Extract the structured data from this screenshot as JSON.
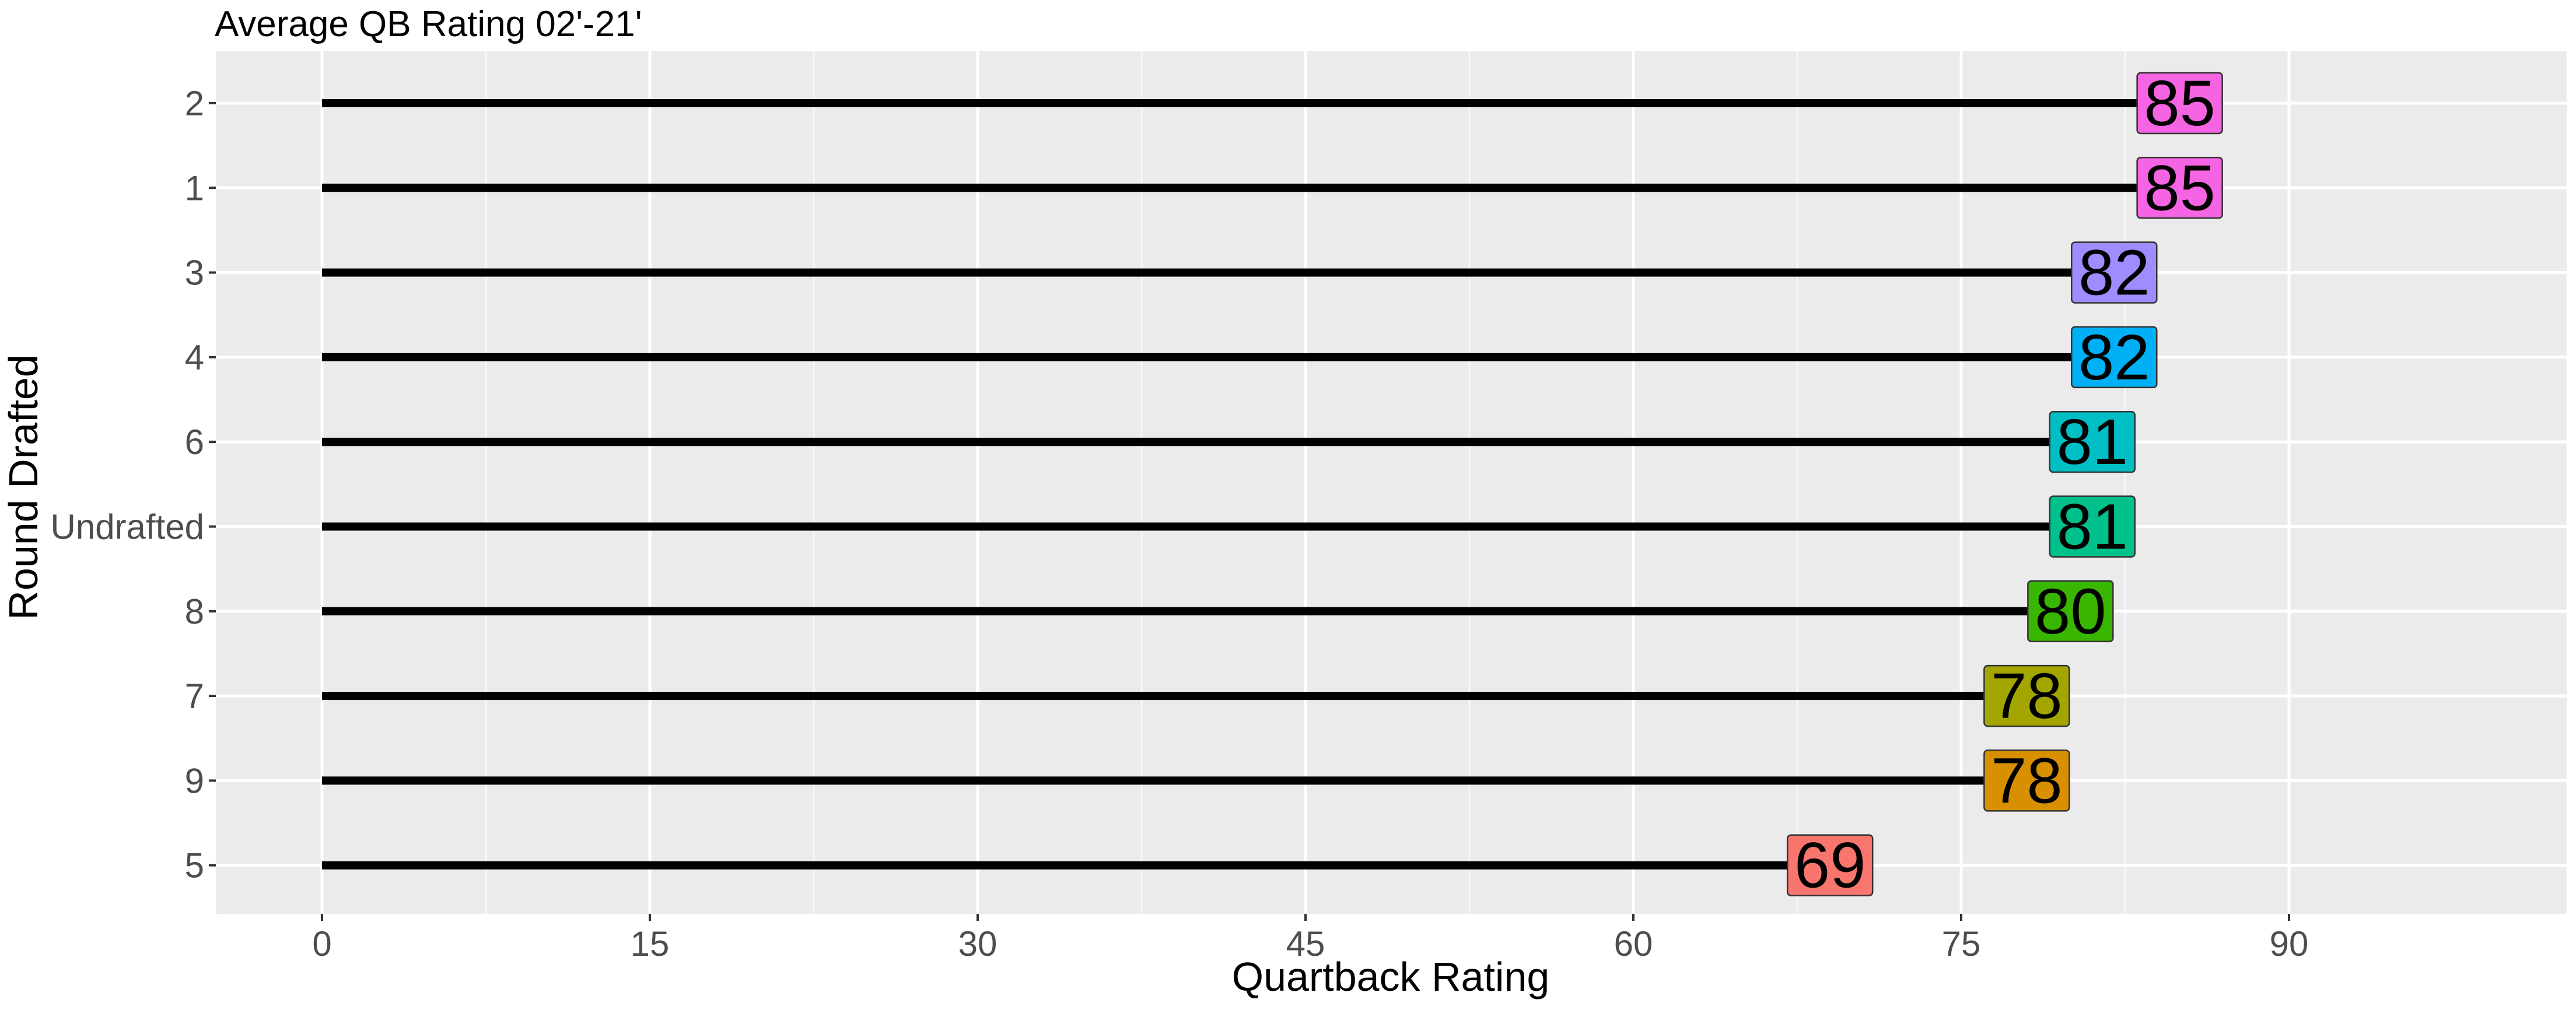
{
  "chart_data": {
    "type": "bar",
    "title": "Average QB Rating 02'-21'",
    "xlabel": "Quartback Rating",
    "ylabel": "Round Drafted",
    "xlim": [
      -15,
      94
    ],
    "xticks": [
      0,
      15,
      30,
      45,
      60,
      75,
      90
    ],
    "grid": true,
    "orientation": "horizontal",
    "style": "lollipop-with-labels",
    "categories": [
      "2",
      "1",
      "3",
      "4",
      "6",
      "Undrafted",
      "8",
      "7",
      "9",
      "5"
    ],
    "values": [
      85,
      85,
      82,
      82,
      81,
      81,
      80,
      78,
      78,
      69
    ],
    "label_colors": [
      "#F564E3",
      "#F564E3",
      "#9F8CFF",
      "#00B0F6",
      "#00BFC4",
      "#00C08B",
      "#39B600",
      "#A3A500",
      "#D89000",
      "#F8766D"
    ],
    "panel_background": "#EBEBEB",
    "grid_color": "#FFFFFF",
    "segment_color": "#000000"
  }
}
